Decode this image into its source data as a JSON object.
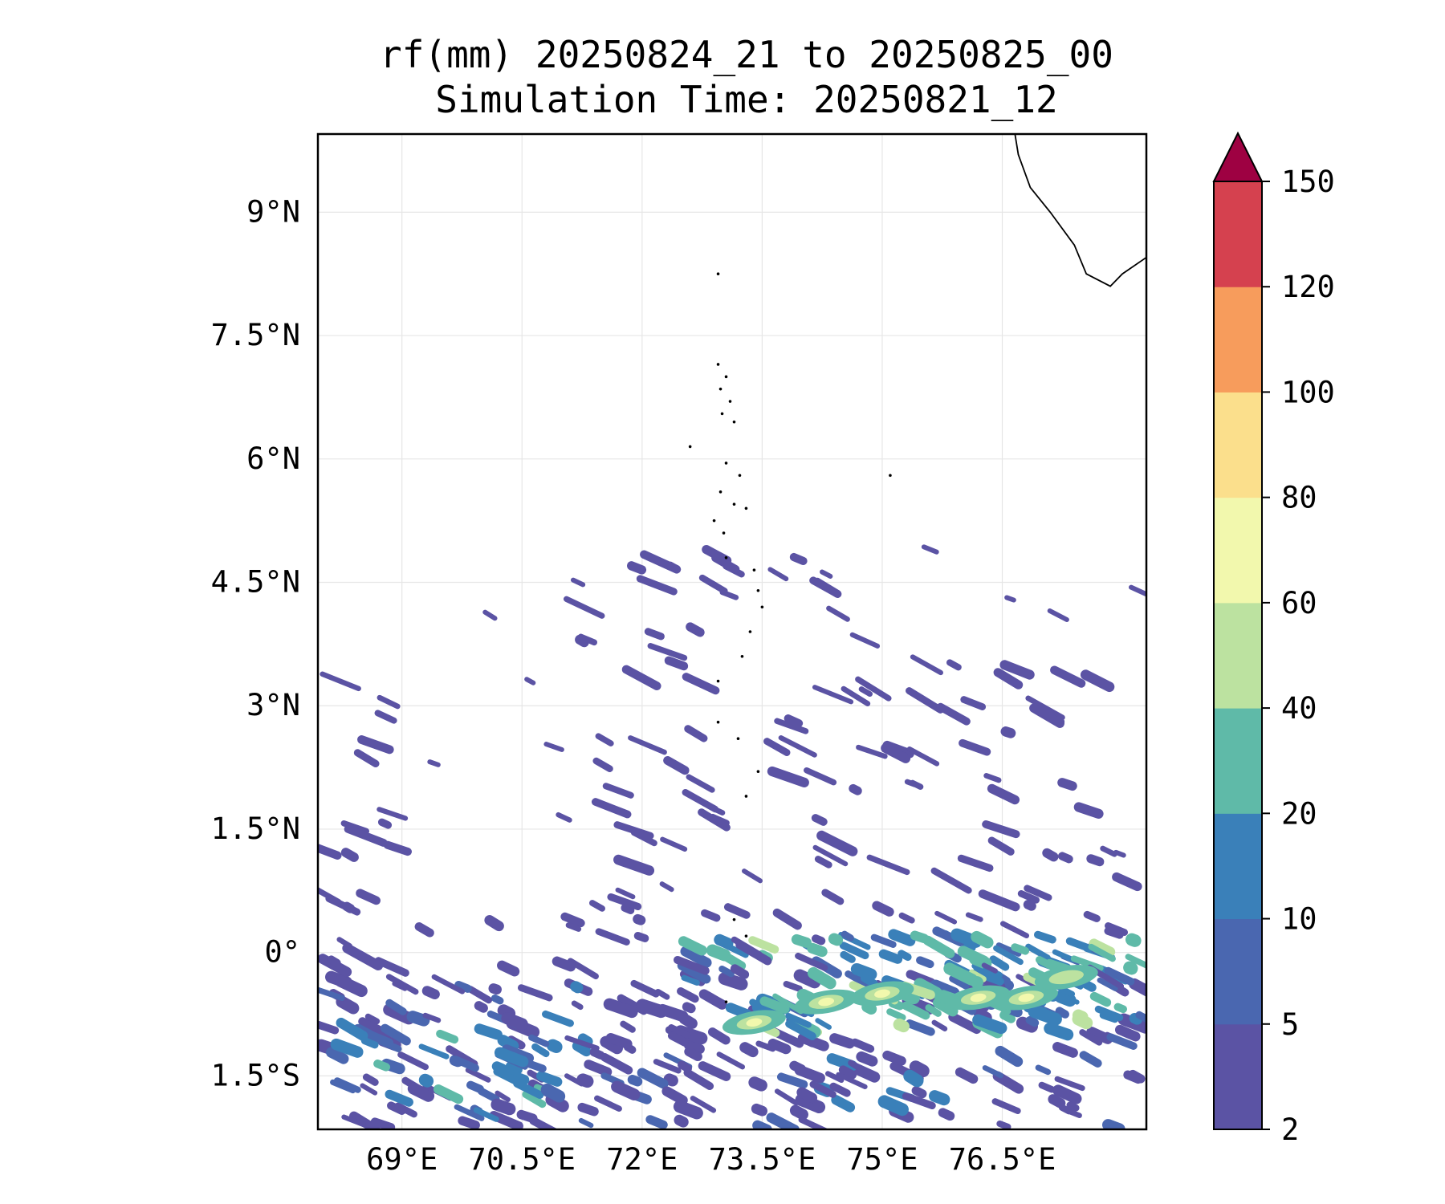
{
  "title": {
    "line1": "rf(mm) 20250824_21 to 20250825_00",
    "line2": "Simulation Time: 20250821_12"
  },
  "map": {
    "lon_range": [
      67.95,
      78.3
    ],
    "lat_range": [
      -2.15,
      9.95
    ],
    "projection": "PlateCarree",
    "gridlines": true,
    "lon_ticks": [
      {
        "value": 69,
        "label": "69°E"
      },
      {
        "value": 70.5,
        "label": "70.5°E"
      },
      {
        "value": 72,
        "label": "72°E"
      },
      {
        "value": 73.5,
        "label": "73.5°E"
      },
      {
        "value": 75,
        "label": "75°E"
      },
      {
        "value": 76.5,
        "label": "76.5°E"
      }
    ],
    "lat_ticks": [
      {
        "value": 9,
        "label": "9°N"
      },
      {
        "value": 7.5,
        "label": "7.5°N"
      },
      {
        "value": 6,
        "label": "6°N"
      },
      {
        "value": 4.5,
        "label": "4.5°N"
      },
      {
        "value": 3,
        "label": "3°N"
      },
      {
        "value": 1.5,
        "label": "1.5°N"
      },
      {
        "value": 0,
        "label": "0°"
      },
      {
        "value": -1.5,
        "label": "1.5°S"
      }
    ],
    "coastline_india": [
      [
        76.65,
        10.0
      ],
      [
        76.7,
        9.7
      ],
      [
        76.85,
        9.3
      ],
      [
        77.1,
        9.0
      ],
      [
        77.4,
        8.6
      ],
      [
        77.55,
        8.25
      ],
      [
        77.85,
        8.1
      ],
      [
        78.0,
        8.25
      ],
      [
        78.3,
        8.45
      ]
    ],
    "islands": [
      [
        72.95,
        8.25
      ],
      [
        72.95,
        7.15
      ],
      [
        73.05,
        7.0
      ],
      [
        72.98,
        6.85
      ],
      [
        73.1,
        6.7
      ],
      [
        73.0,
        6.55
      ],
      [
        73.15,
        6.45
      ],
      [
        73.05,
        5.95
      ],
      [
        73.22,
        5.8
      ],
      [
        72.98,
        5.6
      ],
      [
        73.15,
        5.45
      ],
      [
        72.9,
        5.25
      ],
      [
        73.3,
        5.4
      ],
      [
        73.02,
        5.1
      ],
      [
        73.05,
        4.8
      ],
      [
        73.4,
        4.65
      ],
      [
        73.45,
        4.4
      ],
      [
        73.5,
        4.2
      ],
      [
        73.35,
        3.9
      ],
      [
        73.25,
        3.6
      ],
      [
        72.95,
        3.3
      ],
      [
        72.95,
        2.8
      ],
      [
        73.2,
        2.6
      ],
      [
        73.45,
        2.2
      ],
      [
        73.3,
        1.9
      ],
      [
        73.15,
        0.4
      ],
      [
        73.3,
        0.2
      ],
      [
        73.05,
        -0.6
      ],
      [
        75.1,
        5.8
      ],
      [
        72.6,
        6.15
      ]
    ],
    "rain_zones": [
      {
        "lon": [
          68.0,
          78.3
        ],
        "lat": [
          -2.15,
          -0.3
        ],
        "level": 1
      },
      {
        "lon": [
          72.6,
          78.3
        ],
        "lat": [
          -0.8,
          0.2
        ],
        "level": 2
      },
      {
        "lon": [
          68.0,
          71.0
        ],
        "lat": [
          -1.8,
          -0.9
        ],
        "level": 2
      },
      {
        "lon": [
          73.5,
          78.3
        ],
        "lat": [
          -1.0,
          0.2
        ],
        "level": 3
      },
      {
        "lon": [
          71.0,
          78.3
        ],
        "lat": [
          -0.3,
          1.8
        ],
        "level": 0
      },
      {
        "lon": [
          71.5,
          77.8
        ],
        "lat": [
          1.8,
          3.6
        ],
        "level": 0
      },
      {
        "lon": [
          71.0,
          74.8
        ],
        "lat": [
          3.6,
          4.9
        ],
        "level": 0
      },
      {
        "lon": [
          68.0,
          69.0
        ],
        "lat": [
          -0.3,
          3.5
        ],
        "level": 0
      },
      {
        "lon": [
          68.0,
          71.5
        ],
        "lat": [
          -0.5,
          0.6
        ],
        "level": 0
      }
    ],
    "rain_cores": [
      {
        "lon": 74.3,
        "lat": -0.6,
        "value": 70
      },
      {
        "lon": 75.0,
        "lat": -0.5,
        "value": 65
      },
      {
        "lon": 76.2,
        "lat": -0.55,
        "value": 75
      },
      {
        "lon": 76.8,
        "lat": -0.55,
        "value": 70
      },
      {
        "lon": 73.4,
        "lat": -0.85,
        "value": 62
      },
      {
        "lon": 77.3,
        "lat": -0.3,
        "value": 55
      }
    ]
  },
  "colorbar": {
    "levels": [
      2,
      5,
      10,
      20,
      40,
      60,
      80,
      100,
      120,
      150
    ],
    "tick_labels": [
      "2",
      "5",
      "10",
      "20",
      "40",
      "60",
      "80",
      "100",
      "120",
      "150"
    ],
    "colors": [
      "#5b53a4",
      "#4a67b0",
      "#3a80b9",
      "#5fbaa8",
      "#bce2a0",
      "#f2f8ad",
      "#fbdf8c",
      "#f79c5c",
      "#d5414f"
    ],
    "extend_color": "#9e0142",
    "extend": "max"
  }
}
